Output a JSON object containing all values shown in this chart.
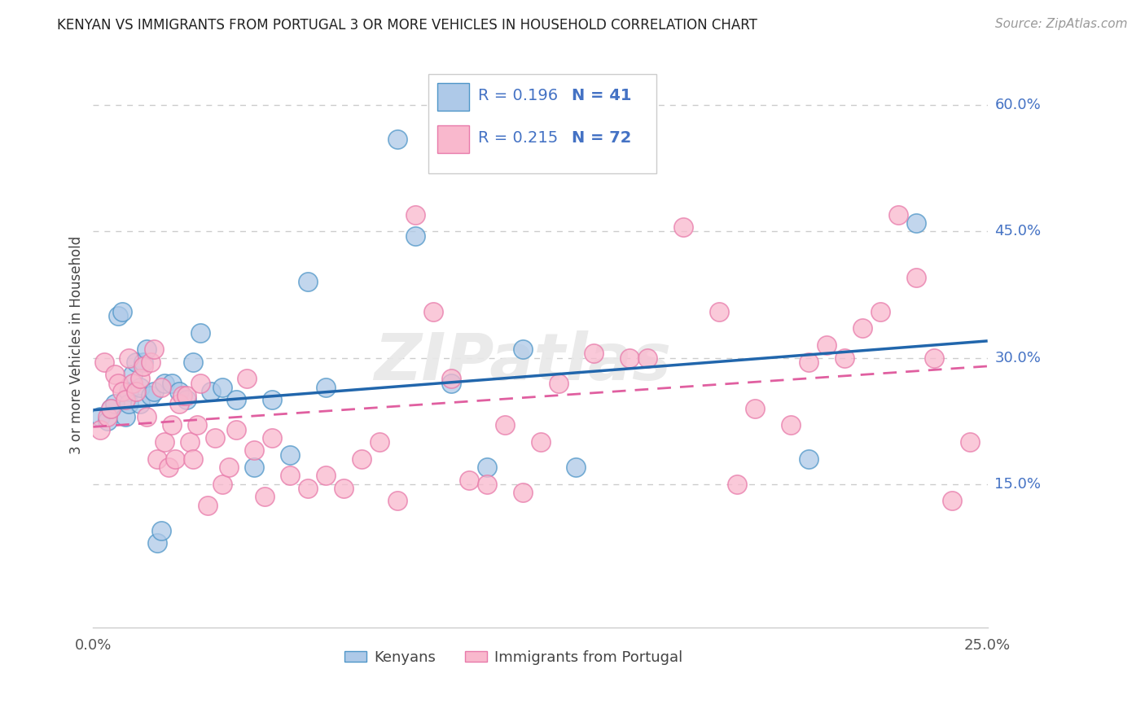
{
  "title": "KENYAN VS IMMIGRANTS FROM PORTUGAL 3 OR MORE VEHICLES IN HOUSEHOLD CORRELATION CHART",
  "source": "Source: ZipAtlas.com",
  "ylabel": "3 or more Vehicles in Household",
  "xlim": [
    0.0,
    0.25
  ],
  "ylim": [
    -0.02,
    0.65
  ],
  "xticks": [
    0.0,
    0.05,
    0.1,
    0.15,
    0.2,
    0.25
  ],
  "xticklabels": [
    "0.0%",
    "",
    "",
    "",
    "",
    "25.0%"
  ],
  "yticks": [
    0.15,
    0.3,
    0.45,
    0.6
  ],
  "yticklabels": [
    "15.0%",
    "30.0%",
    "45.0%",
    "60.0%"
  ],
  "r_kenyan": 0.196,
  "n_kenyan": 41,
  "r_portugal": 0.215,
  "n_portugal": 72,
  "kenyan_color": "#aec9e8",
  "portugal_color": "#f9b8cd",
  "kenyan_edge_color": "#4f96c8",
  "portugal_edge_color": "#e87aaa",
  "kenyan_line_color": "#2166ac",
  "portugal_line_color": "#e05fa0",
  "legend_labels": [
    "Kenyans",
    "Immigrants from Portugal"
  ],
  "watermark": "ZIPatlas",
  "kenyan_line_x0": 0.0,
  "kenyan_line_y0": 0.238,
  "kenyan_line_x1": 0.25,
  "kenyan_line_y1": 0.32,
  "portugal_line_x0": 0.0,
  "portugal_line_y0": 0.218,
  "portugal_line_x1": 0.25,
  "portugal_line_y1": 0.29,
  "kenyan_x": [
    0.002,
    0.004,
    0.005,
    0.006,
    0.007,
    0.008,
    0.009,
    0.01,
    0.01,
    0.011,
    0.012,
    0.013,
    0.013,
    0.014,
    0.015,
    0.016,
    0.017,
    0.018,
    0.019,
    0.02,
    0.022,
    0.024,
    0.026,
    0.028,
    0.03,
    0.033,
    0.036,
    0.04,
    0.045,
    0.05,
    0.055,
    0.06,
    0.065,
    0.085,
    0.09,
    0.1,
    0.11,
    0.12,
    0.135,
    0.2,
    0.23
  ],
  "kenyan_y": [
    0.23,
    0.225,
    0.24,
    0.245,
    0.35,
    0.355,
    0.23,
    0.26,
    0.245,
    0.28,
    0.295,
    0.245,
    0.265,
    0.295,
    0.31,
    0.255,
    0.26,
    0.08,
    0.095,
    0.27,
    0.27,
    0.26,
    0.25,
    0.295,
    0.33,
    0.26,
    0.265,
    0.25,
    0.17,
    0.25,
    0.185,
    0.39,
    0.265,
    0.56,
    0.445,
    0.27,
    0.17,
    0.31,
    0.17,
    0.18,
    0.46
  ],
  "portugal_x": [
    0.002,
    0.003,
    0.004,
    0.005,
    0.006,
    0.007,
    0.008,
    0.009,
    0.01,
    0.011,
    0.012,
    0.013,
    0.014,
    0.015,
    0.016,
    0.017,
    0.018,
    0.019,
    0.02,
    0.021,
    0.022,
    0.023,
    0.024,
    0.025,
    0.026,
    0.027,
    0.028,
    0.029,
    0.03,
    0.032,
    0.034,
    0.036,
    0.038,
    0.04,
    0.043,
    0.045,
    0.048,
    0.05,
    0.055,
    0.06,
    0.065,
    0.07,
    0.075,
    0.08,
    0.085,
    0.09,
    0.095,
    0.1,
    0.105,
    0.11,
    0.115,
    0.12,
    0.125,
    0.13,
    0.14,
    0.15,
    0.155,
    0.165,
    0.175,
    0.18,
    0.185,
    0.195,
    0.2,
    0.205,
    0.21,
    0.215,
    0.22,
    0.225,
    0.23,
    0.235,
    0.24,
    0.245
  ],
  "portugal_y": [
    0.215,
    0.295,
    0.23,
    0.24,
    0.28,
    0.27,
    0.26,
    0.25,
    0.3,
    0.27,
    0.26,
    0.275,
    0.29,
    0.23,
    0.295,
    0.31,
    0.18,
    0.265,
    0.2,
    0.17,
    0.22,
    0.18,
    0.245,
    0.255,
    0.255,
    0.2,
    0.18,
    0.22,
    0.27,
    0.125,
    0.205,
    0.15,
    0.17,
    0.215,
    0.275,
    0.19,
    0.135,
    0.205,
    0.16,
    0.145,
    0.16,
    0.145,
    0.18,
    0.2,
    0.13,
    0.47,
    0.355,
    0.275,
    0.155,
    0.15,
    0.22,
    0.14,
    0.2,
    0.27,
    0.305,
    0.3,
    0.3,
    0.455,
    0.355,
    0.15,
    0.24,
    0.22,
    0.295,
    0.315,
    0.3,
    0.335,
    0.355,
    0.47,
    0.395,
    0.3,
    0.13,
    0.2
  ]
}
